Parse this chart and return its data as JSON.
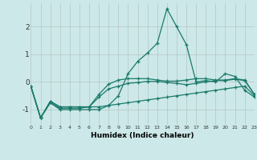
{
  "title": "",
  "xlabel": "Humidex (Indice chaleur)",
  "bg_color": "#cce8e8",
  "grid_color": "#aaaaaa",
  "line_color": "#1a7a6a",
  "x_values": [
    0,
    1,
    2,
    3,
    4,
    5,
    6,
    7,
    8,
    9,
    10,
    11,
    12,
    13,
    14,
    15,
    16,
    17,
    18,
    19,
    20,
    21,
    22,
    23
  ],
  "series": [
    [
      -0.15,
      -1.3,
      -0.75,
      -1.0,
      -1.0,
      -1.0,
      -1.0,
      -1.0,
      -0.85,
      -0.5,
      0.3,
      0.75,
      1.05,
      1.4,
      2.65,
      2.0,
      1.35,
      0.0,
      0.05,
      0.0,
      0.3,
      0.2,
      -0.3,
      -0.55
    ],
    [
      -0.15,
      -1.3,
      -0.7,
      -0.9,
      -0.9,
      -0.9,
      -0.9,
      -0.55,
      -0.25,
      -0.15,
      -0.05,
      -0.02,
      0.02,
      0.02,
      -0.02,
      -0.05,
      -0.1,
      -0.05,
      0.0,
      0.05,
      0.05,
      0.1,
      0.05,
      -0.45
    ],
    [
      -0.15,
      -1.3,
      -0.7,
      -0.9,
      -0.9,
      -0.9,
      -0.9,
      -0.9,
      -0.85,
      -0.8,
      -0.75,
      -0.7,
      -0.65,
      -0.6,
      -0.55,
      -0.5,
      -0.45,
      -0.4,
      -0.35,
      -0.3,
      -0.25,
      -0.2,
      -0.15,
      -0.5
    ],
    [
      -0.15,
      -1.3,
      -0.75,
      -0.95,
      -0.95,
      -0.95,
      -0.9,
      -0.45,
      -0.08,
      0.07,
      0.12,
      0.12,
      0.12,
      0.07,
      0.03,
      0.03,
      0.07,
      0.12,
      0.12,
      0.07,
      0.07,
      0.12,
      0.07,
      -0.45
    ]
  ],
  "ylim": [
    -1.55,
    2.85
  ],
  "yticks": [
    -1,
    0,
    1,
    2
  ],
  "xlim": [
    0,
    23
  ]
}
